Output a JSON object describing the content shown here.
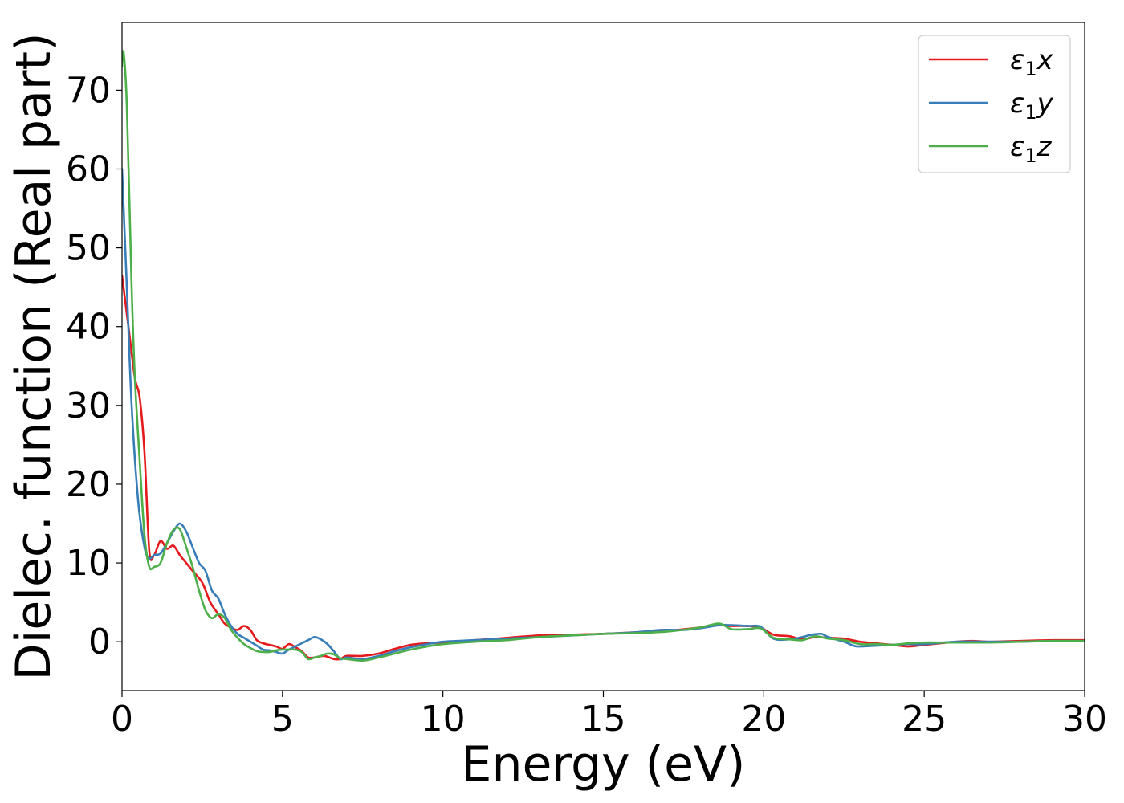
{
  "chart_data": {
    "type": "line",
    "xlabel": "Energy (eV)",
    "ylabel": "Dielec. function (Real part)",
    "xlim": [
      0,
      30
    ],
    "ylim": [
      -6.2,
      78.6
    ],
    "xticks": [
      0,
      5,
      10,
      15,
      20,
      25,
      30
    ],
    "yticks": [
      0,
      10,
      20,
      30,
      40,
      50,
      60,
      70
    ],
    "grid": false,
    "legend_position": "top-right",
    "series": [
      {
        "name": "ε1x",
        "legend_main": "ε",
        "legend_sub": "1",
        "legend_tail": "x",
        "color": "#e41a1c",
        "x": [
          0.0,
          0.2,
          0.4,
          0.55,
          0.7,
          0.85,
          1.0,
          1.2,
          1.4,
          1.6,
          1.8,
          2.0,
          2.2,
          2.5,
          2.75,
          3.0,
          3.2,
          3.4,
          3.6,
          3.8,
          4.0,
          4.2,
          4.4,
          4.6,
          4.8,
          5.0,
          5.2,
          5.4,
          5.6,
          5.8,
          6.0,
          6.3,
          6.6,
          6.8,
          7.0,
          7.5,
          8.0,
          8.5,
          9.0,
          9.5,
          10.0,
          11.0,
          12.0,
          13.0,
          14.0,
          15.0,
          16.0,
          17.0,
          18.0,
          18.6,
          19.0,
          19.5,
          19.9,
          20.3,
          20.8,
          21.2,
          21.6,
          22.0,
          22.5,
          23.0,
          23.5,
          24.0,
          24.5,
          25.0,
          25.5,
          26.0,
          26.5,
          27.0,
          28.0,
          29.0,
          30.0
        ],
        "y": [
          46.5,
          40.0,
          33.5,
          31.0,
          24.0,
          11.5,
          11.0,
          12.8,
          11.8,
          12.2,
          11.0,
          10.0,
          9.0,
          7.5,
          5.0,
          3.5,
          2.3,
          1.8,
          1.5,
          2.0,
          1.5,
          0.2,
          -0.2,
          -0.4,
          -0.6,
          -0.9,
          -0.3,
          -0.7,
          -1.2,
          -2.0,
          -2.0,
          -1.8,
          -2.2,
          -2.2,
          -1.8,
          -1.8,
          -1.5,
          -0.9,
          -0.4,
          -0.2,
          -0.1,
          0.2,
          0.5,
          0.8,
          0.9,
          1.0,
          1.2,
          1.4,
          1.8,
          2.1,
          2.0,
          2.0,
          1.8,
          0.9,
          0.7,
          0.3,
          0.6,
          0.5,
          0.4,
          0.0,
          -0.2,
          -0.4,
          -0.6,
          -0.4,
          -0.2,
          0.0,
          0.1,
          0.0,
          0.1,
          0.2,
          0.2
        ]
      },
      {
        "name": "ε1y",
        "legend_main": "ε",
        "legend_sub": "1",
        "legend_tail": "y",
        "color": "#377eb8",
        "x": [
          0.0,
          0.15,
          0.3,
          0.5,
          0.7,
          0.85,
          1.0,
          1.2,
          1.4,
          1.6,
          1.8,
          2.0,
          2.2,
          2.4,
          2.6,
          2.8,
          3.0,
          3.2,
          3.4,
          3.6,
          3.8,
          4.0,
          4.2,
          4.4,
          4.6,
          4.8,
          5.0,
          5.2,
          5.4,
          5.6,
          5.8,
          6.0,
          6.2,
          6.4,
          6.6,
          6.8,
          7.0,
          7.5,
          8.0,
          8.5,
          9.0,
          9.5,
          10.0,
          11.0,
          12.0,
          13.0,
          14.0,
          15.0,
          16.0,
          16.8,
          17.5,
          18.0,
          18.6,
          19.0,
          19.5,
          19.9,
          20.3,
          20.8,
          21.2,
          21.5,
          21.8,
          22.0,
          22.5,
          22.8,
          23.0,
          23.5,
          24.0,
          24.5,
          25.0,
          26.0,
          27.0,
          28.0,
          29.0,
          30.0
        ],
        "y": [
          60.0,
          45.0,
          30.0,
          18.0,
          12.0,
          10.6,
          11.0,
          11.2,
          12.5,
          14.0,
          15.0,
          14.0,
          12.0,
          10.0,
          9.0,
          6.5,
          5.5,
          3.5,
          2.0,
          1.0,
          0.5,
          0.0,
          -0.5,
          -1.0,
          -1.1,
          -1.3,
          -1.5,
          -1.0,
          -0.6,
          -0.2,
          0.2,
          0.6,
          0.3,
          -0.3,
          -1.2,
          -2.2,
          -2.0,
          -2.2,
          -1.8,
          -1.2,
          -0.7,
          -0.3,
          0.0,
          0.2,
          0.4,
          0.6,
          0.8,
          1.0,
          1.2,
          1.5,
          1.5,
          1.7,
          2.1,
          2.1,
          2.0,
          1.9,
          0.4,
          0.3,
          0.6,
          0.9,
          1.0,
          0.6,
          0.0,
          -0.5,
          -0.6,
          -0.5,
          -0.4,
          -0.3,
          -0.3,
          0.0,
          0.0,
          0.0,
          0.1,
          0.1
        ]
      },
      {
        "name": "ε1z",
        "legend_main": "ε",
        "legend_sub": "1",
        "legend_tail": "z",
        "color": "#4daf4a",
        "x": [
          0.0,
          0.05,
          0.15,
          0.3,
          0.4,
          0.55,
          0.7,
          0.85,
          1.0,
          1.2,
          1.4,
          1.6,
          1.8,
          2.0,
          2.2,
          2.4,
          2.6,
          2.8,
          3.0,
          3.2,
          3.4,
          3.6,
          3.8,
          4.0,
          4.2,
          4.4,
          4.6,
          4.8,
          5.0,
          5.2,
          5.4,
          5.6,
          5.8,
          6.0,
          6.2,
          6.4,
          6.6,
          6.8,
          7.0,
          7.5,
          8.0,
          8.5,
          9.0,
          9.5,
          10.0,
          11.0,
          12.0,
          13.0,
          14.0,
          15.0,
          16.0,
          17.0,
          18.0,
          18.6,
          19.0,
          19.5,
          19.9,
          20.3,
          20.8,
          21.2,
          21.6,
          22.0,
          22.5,
          23.0,
          23.5,
          24.0,
          24.5,
          25.0,
          25.5,
          26.0,
          27.0,
          28.0,
          29.0,
          30.0
        ],
        "y": [
          73.0,
          74.8,
          68.0,
          45.0,
          33.5,
          23.0,
          13.5,
          9.5,
          9.5,
          10.0,
          12.5,
          14.2,
          14.3,
          12.0,
          9.5,
          6.5,
          4.0,
          3.0,
          3.5,
          3.0,
          1.5,
          0.5,
          -0.3,
          -0.8,
          -1.2,
          -1.3,
          -1.3,
          -1.1,
          -1.0,
          -1.0,
          -1.0,
          -1.3,
          -2.2,
          -2.0,
          -1.8,
          -1.5,
          -1.6,
          -2.1,
          -2.2,
          -2.4,
          -2.0,
          -1.5,
          -1.0,
          -0.6,
          -0.3,
          0.0,
          0.2,
          0.6,
          0.8,
          1.0,
          1.1,
          1.3,
          1.8,
          2.3,
          1.6,
          1.6,
          1.7,
          0.5,
          0.3,
          0.2,
          0.7,
          0.4,
          0.2,
          -0.3,
          -0.3,
          -0.4,
          -0.2,
          -0.1,
          -0.1,
          -0.1,
          -0.1,
          0.0,
          0.1,
          0.1
        ]
      }
    ]
  }
}
